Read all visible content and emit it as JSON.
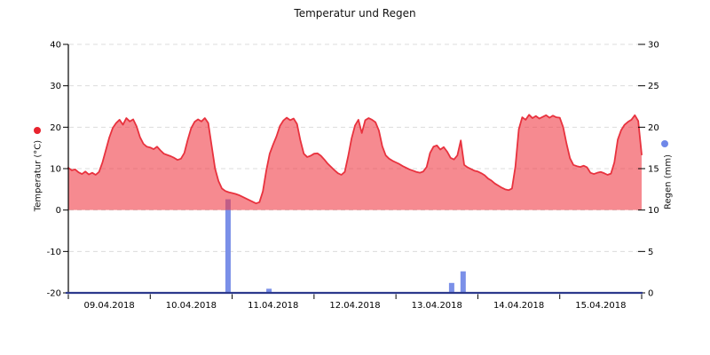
{
  "chart_data": {
    "type": "combo",
    "series_types": {
      "temperature": "area-line",
      "rain": "bar"
    },
    "title": "Temperatur und Regen",
    "left_axis": {
      "label": "Temperatur (°C)",
      "min": -20,
      "max": 40,
      "ticks": [
        -20,
        -10,
        0,
        10,
        20,
        30,
        40
      ],
      "legend_dot_color": "#e8232e"
    },
    "right_axis": {
      "label": "Regen (mm)",
      "min": 0,
      "max": 30,
      "ticks": [
        0,
        5,
        10,
        15,
        20,
        25,
        30
      ],
      "legend_dot_color": "#6f87e8"
    },
    "x_axis": {
      "tick_labels": [
        "09.04.2018",
        "10.04.2018",
        "11.04.2018",
        "12.04.2018",
        "13.04.2018",
        "14.04.2018",
        "15.04.2018"
      ],
      "days": 7
    },
    "grid": {
      "on": true,
      "style": "dashed",
      "color": "#dcdcdc"
    },
    "baseline_color": "#2d3a8c",
    "temperature_series": {
      "name": "Temperatur",
      "unit": "°C",
      "line_color": "#e8323e",
      "fill_color": "rgba(240,60,70,0.6)",
      "fill_to_value": 0,
      "sampling": "hourly from 09.04.2018 00:00 to 16.04.2018 00:00",
      "values_hourly": [
        10.2,
        9.6,
        9.8,
        9.1,
        8.7,
        9.3,
        8.6,
        9.0,
        8.5,
        9.2,
        11.5,
        14.5,
        17.5,
        19.8,
        21.0,
        21.8,
        20.6,
        22.2,
        21.4,
        21.9,
        20.2,
        17.6,
        16.0,
        15.3,
        15.1,
        14.7,
        15.3,
        14.4,
        13.6,
        13.3,
        13.0,
        12.6,
        12.1,
        12.4,
        13.8,
        17.0,
        19.8,
        21.3,
        21.9,
        21.4,
        22.2,
        21.0,
        15.5,
        10.0,
        7.0,
        5.2,
        4.6,
        4.3,
        4.1,
        3.9,
        3.6,
        3.2,
        2.8,
        2.4,
        2.0,
        1.6,
        1.9,
        4.5,
        9.5,
        13.6,
        15.8,
        17.8,
        20.3,
        21.6,
        22.3,
        21.7,
        22.1,
        20.8,
        16.8,
        13.6,
        12.8,
        13.1,
        13.6,
        13.7,
        13.1,
        12.2,
        11.2,
        10.4,
        9.6,
        8.9,
        8.5,
        9.2,
        13.0,
        17.3,
        20.4,
        21.8,
        18.6,
        21.7,
        22.2,
        21.8,
        21.2,
        19.2,
        15.4,
        13.2,
        12.4,
        11.9,
        11.5,
        11.1,
        10.6,
        10.2,
        9.8,
        9.5,
        9.2,
        9.0,
        9.3,
        10.4,
        13.8,
        15.3,
        15.6,
        14.6,
        15.2,
        14.1,
        12.6,
        12.2,
        13.2,
        16.8,
        10.9,
        10.3,
        9.9,
        9.5,
        9.3,
        8.9,
        8.4,
        7.6,
        7.1,
        6.4,
        5.9,
        5.4,
        5.0,
        4.8,
        5.2,
        10.5,
        19.5,
        22.4,
        21.8,
        23.0,
        22.2,
        22.7,
        22.1,
        22.5,
        22.9,
        22.3,
        22.8,
        22.4,
        22.3,
        20.0,
        16.0,
        12.5,
        10.9,
        10.6,
        10.4,
        10.7,
        10.3,
        9.0,
        8.7,
        9.0,
        9.2,
        8.9,
        8.5,
        8.8,
        11.5,
        17.0,
        19.3,
        20.6,
        21.3,
        21.8,
        22.9,
        21.5,
        13.4
      ]
    },
    "rain_series": {
      "name": "Regen",
      "unit": "mm",
      "bar_color": "#7b90e8",
      "bars": [
        {
          "x_day": 1.95,
          "mm": 11.3
        },
        {
          "x_day": 2.45,
          "mm": 0.5
        },
        {
          "x_day": 4.68,
          "mm": 1.2
        },
        {
          "x_day": 4.82,
          "mm": 2.6
        }
      ]
    }
  }
}
